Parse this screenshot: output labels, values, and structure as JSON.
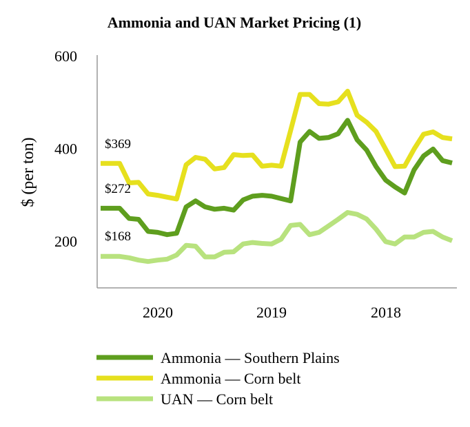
{
  "chart_data": {
    "type": "line",
    "title": "Ammonia and UAN Market Pricing (1)",
    "xlabel": "",
    "ylabel": "$ (per ton)",
    "ylim": [
      100,
      600
    ],
    "yticks": [
      200,
      400,
      600
    ],
    "x_ticklabels": [
      "2020",
      "2019",
      "2018"
    ],
    "grid": false,
    "legend_position": "bottom",
    "annotations": [
      "$369",
      "$272",
      "$168"
    ],
    "series": [
      {
        "name": "Ammonia — Southern Plains",
        "color": "#5E9E1E",
        "values": [
          272,
          272,
          272,
          250,
          248,
          222,
          220,
          215,
          218,
          275,
          288,
          275,
          270,
          272,
          268,
          290,
          298,
          300,
          298,
          293,
          288,
          415,
          438,
          423,
          425,
          433,
          462,
          420,
          398,
          362,
          333,
          318,
          305,
          355,
          385,
          400,
          375,
          370
        ]
      },
      {
        "name": "Ammonia — Corn belt",
        "color": "#E6E01E",
        "values": [
          369,
          369,
          369,
          327,
          328,
          303,
          300,
          296,
          292,
          366,
          382,
          378,
          357,
          360,
          388,
          386,
          387,
          363,
          365,
          363,
          440,
          518,
          518,
          498,
          497,
          502,
          525,
          473,
          458,
          438,
          400,
          362,
          363,
          400,
          432,
          437,
          425,
          422
        ]
      },
      {
        "name": "UAN — Corn belt",
        "color": "#B8E27E",
        "values": [
          168,
          168,
          168,
          165,
          160,
          157,
          160,
          162,
          171,
          192,
          190,
          167,
          167,
          177,
          178,
          195,
          198,
          196,
          195,
          205,
          235,
          237,
          215,
          220,
          234,
          248,
          263,
          259,
          249,
          227,
          200,
          195,
          210,
          210,
          220,
          222,
          210,
          202
        ]
      }
    ]
  }
}
